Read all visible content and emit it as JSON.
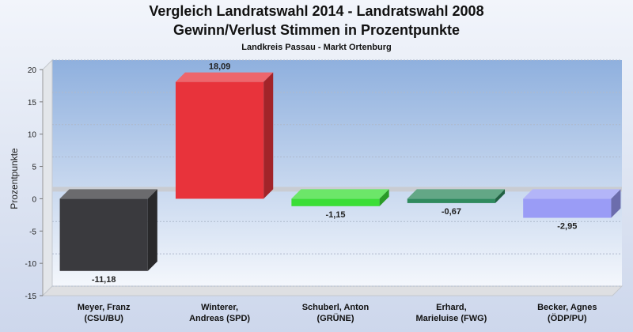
{
  "header": {
    "title_line1": "Vergleich Landratswahl 2014 - Landratswahl 2008",
    "title_line2": "Gewinn/Verlust Stimmen in Prozentpunkte",
    "subtitle": "Landkreis Passau - Markt Ortenburg"
  },
  "chart_data": {
    "type": "bar",
    "title": "Vergleich Landratswahl 2014 - Landratswahl 2008 Gewinn/Verlust Stimmen in Prozentpunkte",
    "subtitle": "Landkreis Passau - Markt Ortenburg",
    "xlabel": "",
    "ylabel": "Prozentpunkte",
    "ylim": [
      -15,
      20
    ],
    "yticks": [
      "20",
      "15",
      "10",
      "5",
      "0",
      "-5",
      "-10",
      "-15"
    ],
    "grid": true,
    "legend": "none",
    "categories": [
      [
        "Meyer, Franz",
        "(CSU/BU)"
      ],
      [
        "Winterer,",
        "Andreas (SPD)"
      ],
      [
        "Schuberl, Anton",
        "(GRÜNE)"
      ],
      [
        "Erhard,",
        "Marieluise (FWG)"
      ],
      [
        "Becker, Agnes",
        "(ÖDP/PU)"
      ]
    ],
    "values": [
      -11.18,
      18.09,
      -1.15,
      -0.67,
      -2.95
    ],
    "value_labels": [
      "-11,18",
      "18,09",
      "-1,15",
      "-0,67",
      "-2,95"
    ],
    "colors": [
      "#3a3a3e",
      "#e8333b",
      "#3bde37",
      "#2f8a5e",
      "#9a9cf6"
    ]
  }
}
